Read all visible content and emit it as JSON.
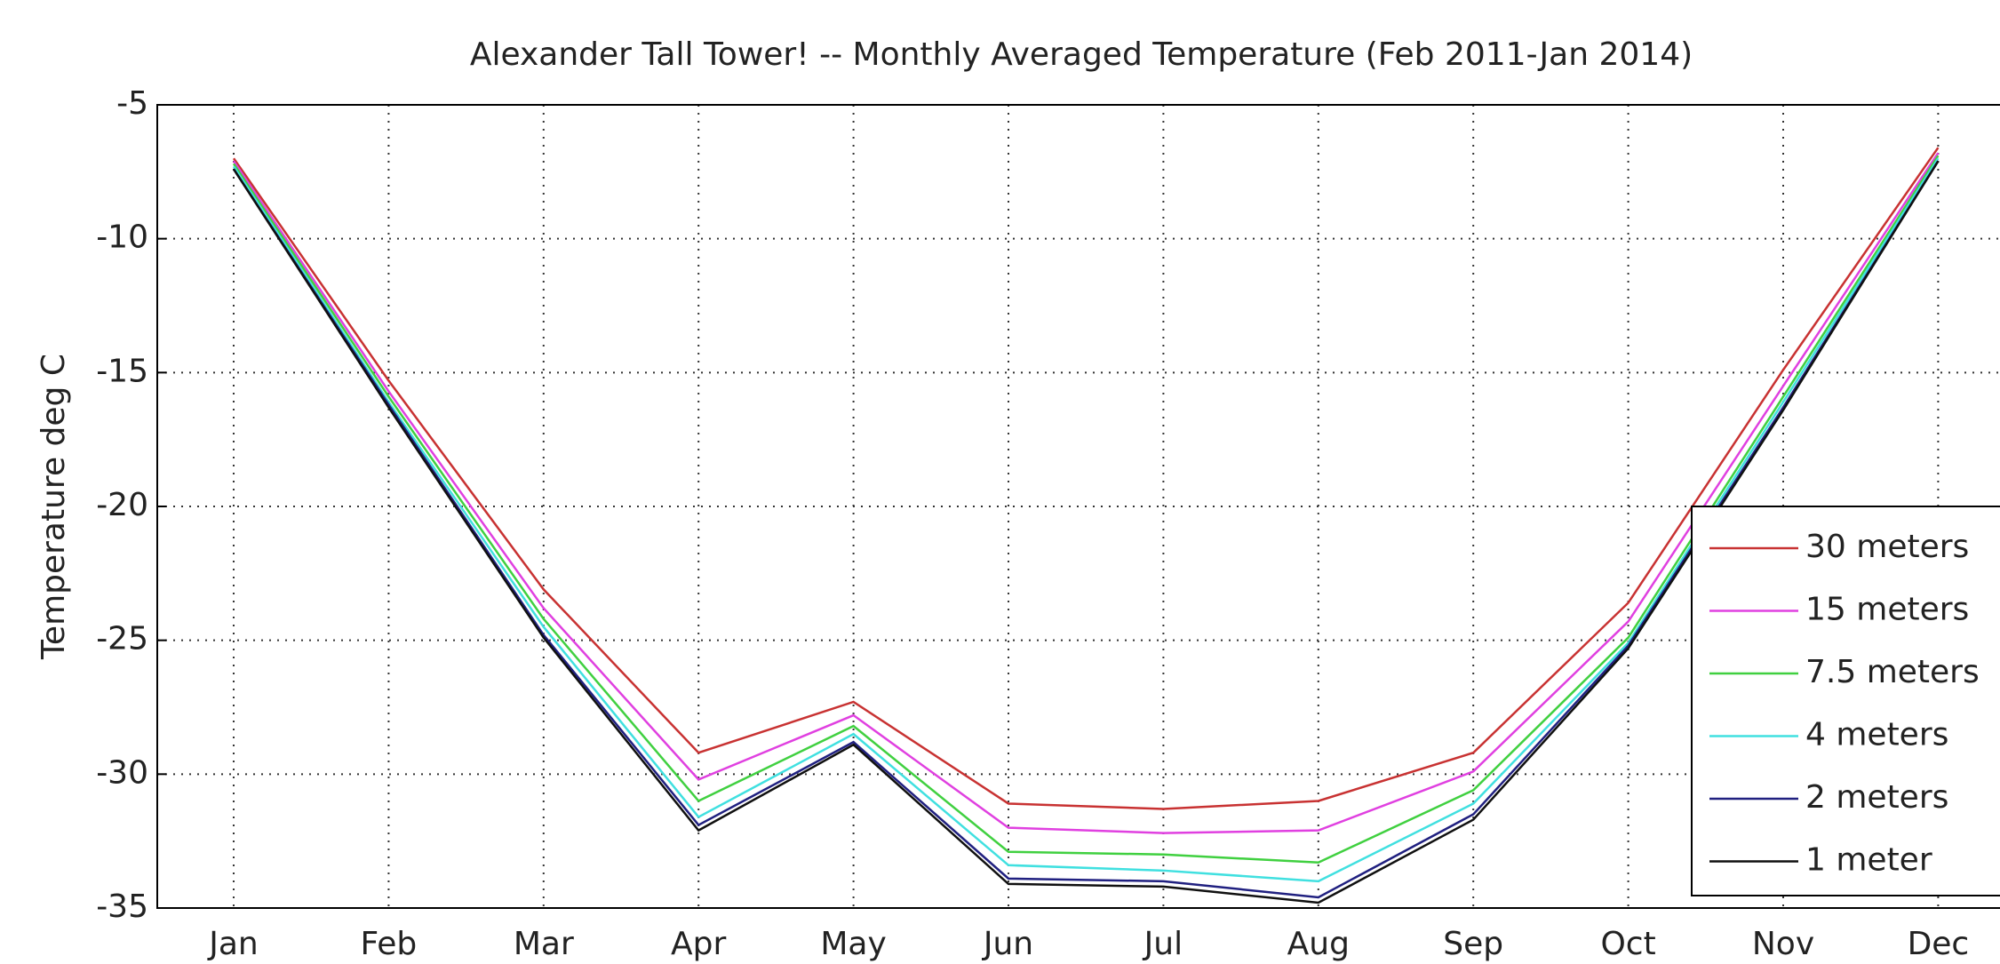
{
  "chart_data": {
    "type": "line",
    "title": "Alexander Tall Tower! -- Monthly Averaged Temperature (Feb 2011-Jan 2014)",
    "ylabel": "Temperature deg C",
    "categories": [
      "Jan",
      "Feb",
      "Mar",
      "Apr",
      "May",
      "Jun",
      "Jul",
      "Aug",
      "Sep",
      "Oct",
      "Nov",
      "Dec"
    ],
    "series": [
      {
        "name": "30 meters",
        "color": "#c83232",
        "values": [
          -7.0,
          -15.3,
          -23.1,
          -29.2,
          -27.3,
          -31.1,
          -31.3,
          -31.0,
          -29.2,
          -23.6,
          -14.9,
          -6.6
        ]
      },
      {
        "name": "15 meters",
        "color": "#e040e0",
        "values": [
          -7.1,
          -15.7,
          -23.8,
          -30.2,
          -27.8,
          -32.0,
          -32.2,
          -32.1,
          -29.9,
          -24.3,
          -15.5,
          -6.8
        ]
      },
      {
        "name": "7.5 meters",
        "color": "#40d040",
        "values": [
          -7.2,
          -15.9,
          -24.2,
          -31.0,
          -28.2,
          -32.9,
          -33.0,
          -33.3,
          -30.6,
          -24.9,
          -15.9,
          -6.9
        ]
      },
      {
        "name": "4 meters",
        "color": "#40e0e0",
        "values": [
          -7.3,
          -16.1,
          -24.5,
          -31.6,
          -28.5,
          -33.4,
          -33.6,
          -34.0,
          -31.1,
          -25.1,
          -16.1,
          -7.0
        ]
      },
      {
        "name": "2 meters",
        "color": "#202080",
        "values": [
          -7.4,
          -16.2,
          -24.8,
          -31.9,
          -28.8,
          -33.9,
          -34.0,
          -34.6,
          -31.5,
          -25.2,
          -16.3,
          -7.1
        ]
      },
      {
        "name": "1 meter",
        "color": "#101010",
        "values": [
          -7.4,
          -16.3,
          -24.9,
          -32.1,
          -28.9,
          -34.1,
          -34.2,
          -34.8,
          -31.7,
          -25.3,
          -16.4,
          -7.1
        ]
      }
    ],
    "ylim": [
      -35,
      -5
    ],
    "yticks": [
      -35,
      -30,
      -25,
      -20,
      -15,
      -10,
      -5
    ],
    "grid": true,
    "legend": "lower right"
  }
}
